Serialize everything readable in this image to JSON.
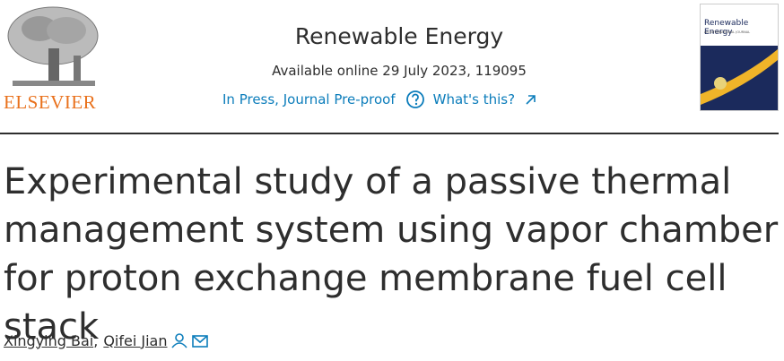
{
  "header": {
    "publisher": "ELSEVIER",
    "journal": "Renewable Energy",
    "availability": "Available online 29 July 2023, 119095",
    "status": "In Press, Journal Pre-proof",
    "help_link": "What's this?",
    "cover": {
      "title": "Renewable Energy",
      "subtitle": "AN INTERNATIONAL JOURNAL"
    }
  },
  "article": {
    "title": "Experimental study of a passive thermal management system using vapor chamber for proton exchange membrane fuel cell stack",
    "authors": [
      "Xingying Bai",
      "Qifei Jian"
    ],
    "author_separator": ","
  }
}
